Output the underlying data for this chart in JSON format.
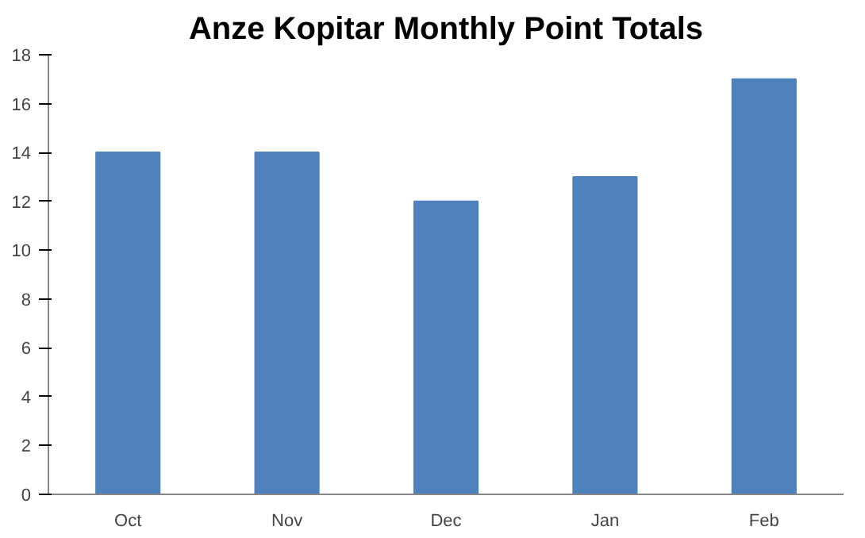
{
  "chart_data": {
    "type": "bar",
    "title": "Anze Kopitar Monthly Point Totals",
    "categories": [
      "Oct",
      "Nov",
      "Dec",
      "Jan",
      "Feb"
    ],
    "values": [
      14,
      14,
      12,
      13,
      17
    ],
    "color": "#4f81bd",
    "ylim": [
      0,
      18
    ],
    "yticks": [
      0,
      2,
      4,
      6,
      8,
      10,
      12,
      14,
      16,
      18
    ],
    "grid": false
  }
}
